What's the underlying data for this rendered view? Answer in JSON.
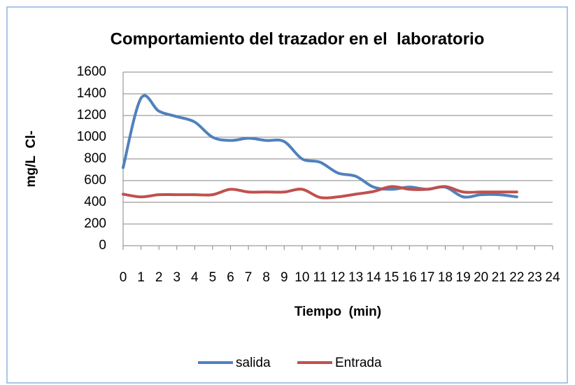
{
  "chart_data": {
    "type": "line",
    "title": "Comportamiento del trazador en el  laboratorio",
    "x_label": "Tiempo  (min)",
    "y_label": "mg/L  Cl-",
    "categories": [
      0,
      1,
      2,
      3,
      4,
      5,
      6,
      7,
      8,
      9,
      10,
      11,
      12,
      13,
      14,
      15,
      16,
      17,
      18,
      19,
      20,
      21,
      22,
      23,
      24
    ],
    "series": [
      {
        "name": "salida",
        "color": "#4f81bd",
        "values": [
          720,
          1360,
          1240,
          1190,
          1140,
          1000,
          970,
          990,
          970,
          960,
          800,
          770,
          670,
          640,
          540,
          520,
          540,
          520,
          540,
          450,
          470,
          470,
          450,
          null,
          null
        ]
      },
      {
        "name": "Entrada",
        "color": "#c0504d",
        "values": [
          475,
          450,
          470,
          470,
          470,
          470,
          520,
          495,
          495,
          495,
          520,
          445,
          450,
          475,
          500,
          545,
          520,
          520,
          545,
          495,
          495,
          495,
          495,
          null,
          null
        ]
      }
    ],
    "ylim": [
      0,
      1600
    ],
    "yticks": [
      0,
      200,
      400,
      600,
      800,
      1000,
      1200,
      1400,
      1600
    ],
    "grid": true,
    "legend": "bottom",
    "smooth": true
  }
}
